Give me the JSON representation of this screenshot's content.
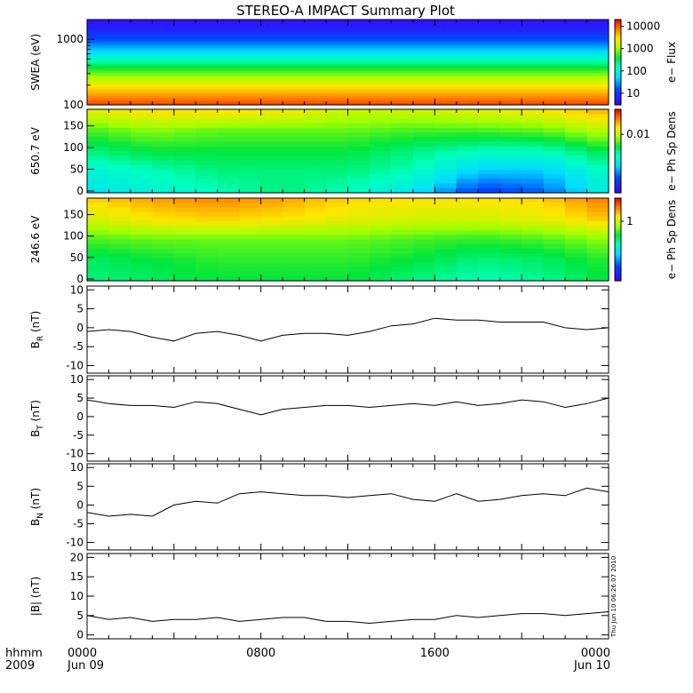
{
  "title": "STEREO-A IMPACT Summary Plot",
  "time_axis": {
    "row_label_1": "hhmm",
    "row_label_2": "2009",
    "ticks": [
      {
        "hour": 0,
        "time": "0000",
        "date": "Jun 09"
      },
      {
        "hour": 8,
        "time": "0800",
        "date": ""
      },
      {
        "hour": 16,
        "time": "1600",
        "date": ""
      },
      {
        "hour": 24,
        "time": "0000",
        "date": "Jun 10"
      }
    ],
    "range_hours": [
      0,
      24
    ]
  },
  "stamp": "Thu Jun 10 06:26:07 2010",
  "colors": {
    "line": "#000000",
    "frame": "#000000",
    "colorbar_low": "#4000ff",
    "colorbar_high": "#ff0000"
  },
  "chart_data": [
    {
      "type": "heatmap",
      "ylabel": "SWEA (eV)",
      "yscale": "log",
      "ylim": [
        100,
        2000
      ],
      "yticks": [
        "100",
        "1000"
      ],
      "colorbar": {
        "label": "e− Flux",
        "scale": "log",
        "range": [
          3,
          20000
        ],
        "ticks": [
          "10",
          "100",
          "1000",
          "10000"
        ]
      },
      "energy_eV": [
        100,
        200,
        400,
        700,
        1000,
        1500,
        2000
      ],
      "flux_profile": [
        12000,
        2500,
        300,
        40,
        15,
        6,
        4
      ]
    },
    {
      "type": "heatmap",
      "ylabel": "650.7 eV",
      "ylim": [
        0,
        180
      ],
      "yticks": [
        "0",
        "50",
        "100",
        "150"
      ],
      "colorbar": {
        "label": "e− Ph Sp Dens",
        "scale": "log",
        "ticks": [
          "0.01"
        ]
      },
      "pitch_angle_deg": [
        0,
        45,
        90,
        135,
        180
      ],
      "time_hours": [
        0,
        3,
        6,
        9,
        12,
        15,
        18,
        21,
        24
      ],
      "level": [
        [
          0.35,
          0.4,
          0.45,
          0.5,
          0.45,
          0.35,
          0.15,
          0.2,
          0.4
        ],
        [
          0.4,
          0.45,
          0.5,
          0.5,
          0.5,
          0.45,
          0.3,
          0.3,
          0.45
        ],
        [
          0.5,
          0.55,
          0.55,
          0.55,
          0.55,
          0.5,
          0.45,
          0.45,
          0.55
        ],
        [
          0.6,
          0.65,
          0.62,
          0.62,
          0.62,
          0.6,
          0.6,
          0.62,
          0.7
        ],
        [
          0.75,
          0.8,
          0.8,
          0.78,
          0.72,
          0.72,
          0.75,
          0.78,
          0.85
        ]
      ]
    },
    {
      "type": "heatmap",
      "ylabel": "246.6 eV",
      "ylim": [
        0,
        180
      ],
      "yticks": [
        "0",
        "50",
        "100",
        "150"
      ],
      "colorbar": {
        "label": "e− Ph Sp Dens",
        "scale": "log",
        "ticks": [
          "1"
        ]
      },
      "pitch_angle_deg": [
        0,
        45,
        90,
        135,
        180
      ],
      "time_hours": [
        0,
        3,
        6,
        9,
        12,
        15,
        18,
        21,
        24
      ],
      "level": [
        [
          0.5,
          0.52,
          0.55,
          0.55,
          0.55,
          0.5,
          0.45,
          0.48,
          0.55
        ],
        [
          0.52,
          0.55,
          0.58,
          0.58,
          0.58,
          0.55,
          0.5,
          0.52,
          0.58
        ],
        [
          0.6,
          0.62,
          0.62,
          0.62,
          0.62,
          0.6,
          0.58,
          0.6,
          0.65
        ],
        [
          0.72,
          0.78,
          0.8,
          0.78,
          0.75,
          0.72,
          0.72,
          0.75,
          0.82
        ],
        [
          0.8,
          0.85,
          0.88,
          0.85,
          0.8,
          0.78,
          0.78,
          0.8,
          0.9
        ]
      ]
    },
    {
      "type": "line",
      "ylabel_main": "B",
      "ylabel_sub": "R",
      "ylabel_unit": " (nT)",
      "ylim": [
        -12,
        11
      ],
      "yticks": [
        -10,
        -5,
        0,
        5,
        10
      ],
      "x_hours": [
        0,
        1,
        2,
        3,
        4,
        5,
        6,
        7,
        8,
        9,
        10,
        11,
        12,
        13,
        14,
        15,
        16,
        17,
        18,
        19,
        20,
        21,
        22,
        23,
        24
      ],
      "values": [
        -1,
        -0.5,
        -1,
        -2.5,
        -3.5,
        -1.5,
        -1,
        -2,
        -3.5,
        -2,
        -1.5,
        -1.5,
        -2,
        -1,
        0.5,
        1,
        2.5,
        2,
        2,
        1.5,
        1.5,
        1.5,
        0,
        -0.5,
        0
      ]
    },
    {
      "type": "line",
      "ylabel_main": "B",
      "ylabel_sub": "T",
      "ylabel_unit": " (nT)",
      "ylim": [
        -12,
        11
      ],
      "yticks": [
        -10,
        -5,
        0,
        5,
        10
      ],
      "x_hours": [
        0,
        1,
        2,
        3,
        4,
        5,
        6,
        7,
        8,
        9,
        10,
        11,
        12,
        13,
        14,
        15,
        16,
        17,
        18,
        19,
        20,
        21,
        22,
        23,
        24
      ],
      "values": [
        4.5,
        3.5,
        3,
        3,
        2.5,
        4,
        3.5,
        2,
        0.5,
        2,
        2.5,
        3,
        3,
        2.5,
        3,
        3.5,
        3,
        4,
        3,
        3.5,
        4.5,
        4,
        2.5,
        3.5,
        5
      ]
    },
    {
      "type": "line",
      "ylabel_main": "B",
      "ylabel_sub": "N",
      "ylabel_unit": " (nT)",
      "ylim": [
        -12,
        11
      ],
      "yticks": [
        -10,
        -5,
        0,
        5,
        10
      ],
      "x_hours": [
        0,
        1,
        2,
        3,
        4,
        5,
        6,
        7,
        8,
        9,
        10,
        11,
        12,
        13,
        14,
        15,
        16,
        17,
        18,
        19,
        20,
        21,
        22,
        23,
        24
      ],
      "values": [
        -2,
        -3,
        -2.5,
        -3,
        0,
        1,
        0.5,
        3,
        3.5,
        3,
        2.5,
        2.5,
        2,
        2.5,
        3,
        1.5,
        1,
        3,
        1,
        1.5,
        2.5,
        3,
        2.5,
        4.5,
        3.5
      ]
    },
    {
      "type": "line",
      "ylabel_main": "|B|",
      "ylabel_sub": "",
      "ylabel_unit": " (nT)",
      "ylim": [
        -1,
        21
      ],
      "yticks": [
        0,
        5,
        10,
        15,
        20
      ],
      "x_hours": [
        0,
        1,
        2,
        3,
        4,
        5,
        6,
        7,
        8,
        9,
        10,
        11,
        12,
        13,
        14,
        15,
        16,
        17,
        18,
        19,
        20,
        21,
        22,
        23,
        24
      ],
      "values": [
        5,
        4,
        4.5,
        3.5,
        4,
        4,
        4.5,
        3.5,
        4,
        4.5,
        4.5,
        3.5,
        3.5,
        3,
        3.5,
        4,
        4,
        5,
        4.5,
        5,
        5.5,
        5.5,
        5,
        5.5,
        6
      ]
    }
  ]
}
